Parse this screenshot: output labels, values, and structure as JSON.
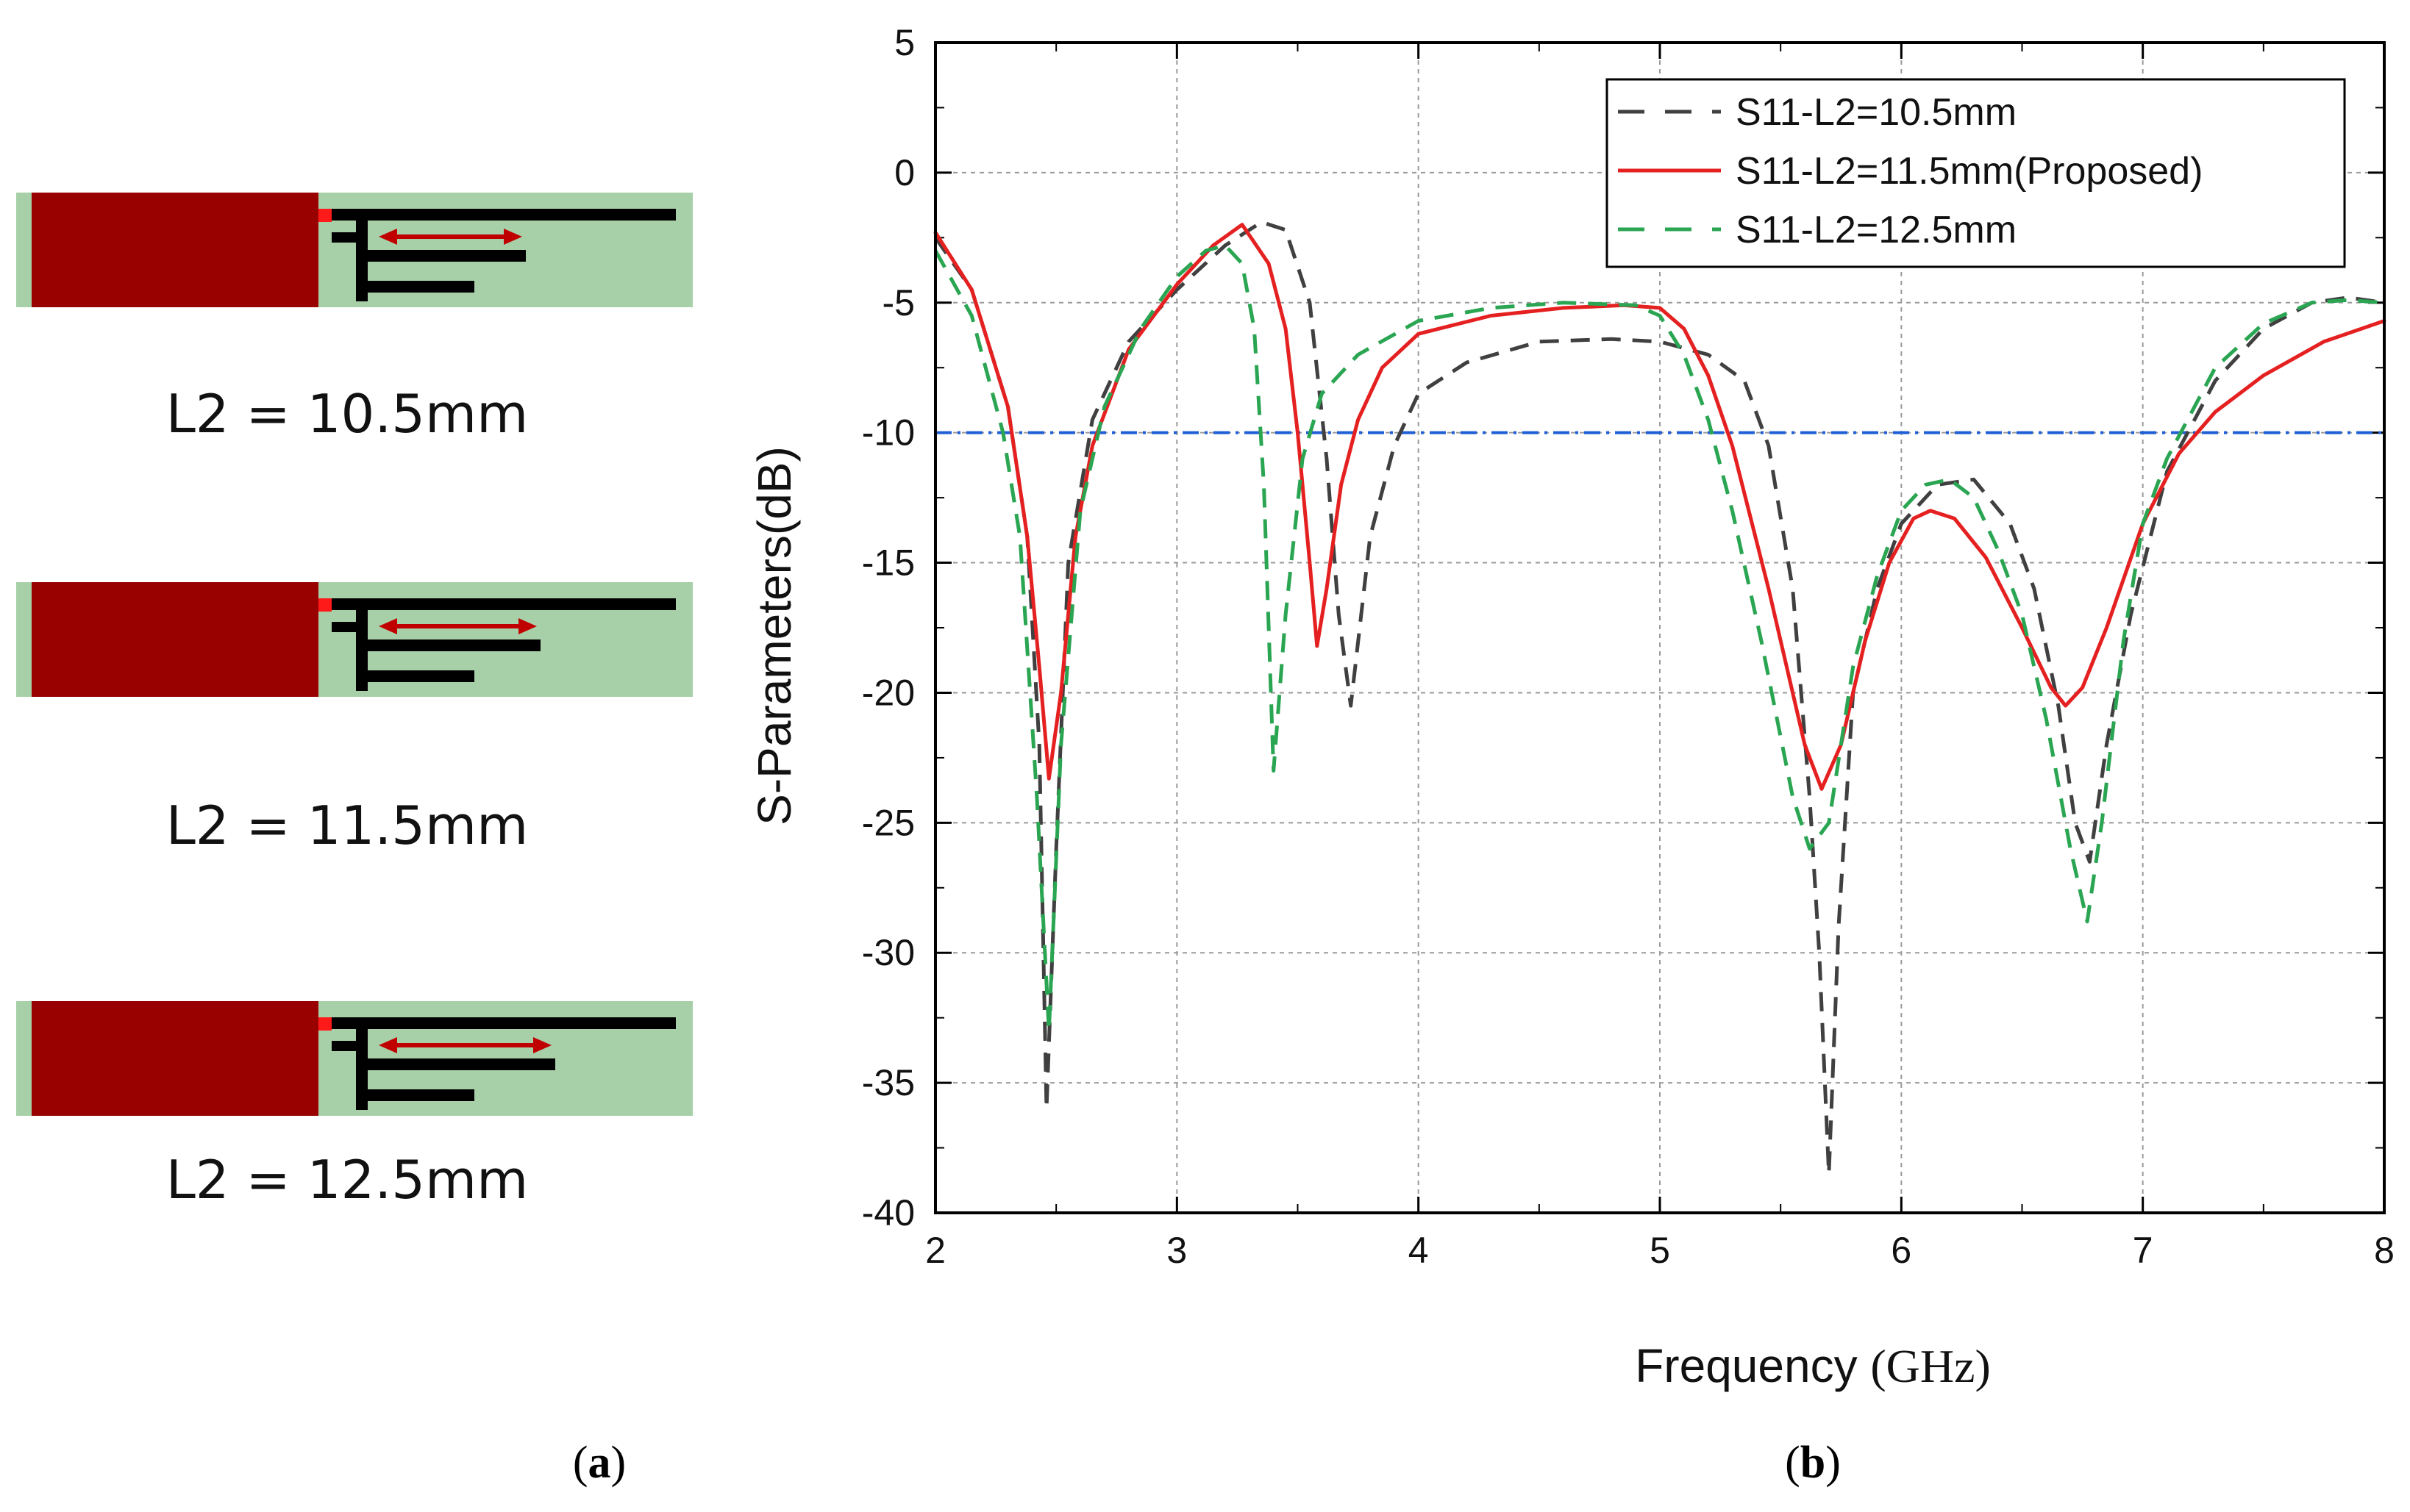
{
  "panel_a": {
    "label": "a",
    "antennas": [
      {
        "caption": "L2 = 10.5mm",
        "l2_mm": 10.5
      },
      {
        "caption": "L2 = 11.5mm",
        "l2_mm": 11.5
      },
      {
        "caption": "L2 = 12.5mm",
        "l2_mm": 12.5
      }
    ],
    "colors": {
      "substrate": "#a8d0a8",
      "ground": "#990000",
      "feed": "#ff1a1a",
      "trace": "#000000",
      "arrow": "#c00000"
    }
  },
  "panel_b": {
    "label": "b"
  },
  "chart_data": {
    "type": "line",
    "xlabel": "Frequency",
    "xlabel_unit": "(GHz)",
    "ylabel": "S-Parameters(dB)",
    "xlim": [
      2,
      8
    ],
    "ylim": [
      -40,
      5
    ],
    "xticks": [
      2,
      3,
      4,
      5,
      6,
      7,
      8
    ],
    "yticks": [
      5,
      0,
      -5,
      -10,
      -15,
      -20,
      -25,
      -30,
      -35,
      -40
    ],
    "grid": true,
    "legend_position": "top-right",
    "reference_line": {
      "y": -10,
      "color": "#1f5fd6",
      "style": "dash-dot"
    },
    "series": [
      {
        "name": "S11-L2=10.5mm",
        "color": "#404040",
        "dash": "dashed",
        "points": [
          [
            2.0,
            -2.5
          ],
          [
            2.15,
            -4.5
          ],
          [
            2.3,
            -9.0
          ],
          [
            2.38,
            -14.0
          ],
          [
            2.43,
            -22.0
          ],
          [
            2.46,
            -36.0
          ],
          [
            2.5,
            -26.0
          ],
          [
            2.55,
            -15.0
          ],
          [
            2.65,
            -9.5
          ],
          [
            2.8,
            -6.5
          ],
          [
            3.0,
            -4.5
          ],
          [
            3.2,
            -2.8
          ],
          [
            3.35,
            -1.9
          ],
          [
            3.45,
            -2.2
          ],
          [
            3.55,
            -5.0
          ],
          [
            3.62,
            -11.0
          ],
          [
            3.67,
            -17.0
          ],
          [
            3.72,
            -20.5
          ],
          [
            3.8,
            -14.0
          ],
          [
            3.9,
            -10.5
          ],
          [
            4.0,
            -8.5
          ],
          [
            4.2,
            -7.3
          ],
          [
            4.5,
            -6.5
          ],
          [
            4.8,
            -6.4
          ],
          [
            5.0,
            -6.5
          ],
          [
            5.2,
            -7.0
          ],
          [
            5.35,
            -8.0
          ],
          [
            5.45,
            -10.5
          ],
          [
            5.55,
            -16.0
          ],
          [
            5.62,
            -24.0
          ],
          [
            5.66,
            -30.0
          ],
          [
            5.7,
            -38.5
          ],
          [
            5.74,
            -29.0
          ],
          [
            5.8,
            -20.0
          ],
          [
            5.9,
            -16.0
          ],
          [
            6.0,
            -13.5
          ],
          [
            6.15,
            -12.0
          ],
          [
            6.3,
            -11.8
          ],
          [
            6.45,
            -13.5
          ],
          [
            6.55,
            -16.0
          ],
          [
            6.65,
            -20.5
          ],
          [
            6.72,
            -25.0
          ],
          [
            6.78,
            -26.5
          ],
          [
            6.85,
            -22.0
          ],
          [
            6.95,
            -17.0
          ],
          [
            7.1,
            -11.5
          ],
          [
            7.3,
            -8.0
          ],
          [
            7.5,
            -6.0
          ],
          [
            7.7,
            -5.0
          ],
          [
            7.85,
            -4.8
          ],
          [
            8.0,
            -5.0
          ]
        ]
      },
      {
        "name": "S11-L2=11.5mm(Proposed)",
        "color": "#e52020",
        "dash": "solid",
        "points": [
          [
            2.0,
            -2.3
          ],
          [
            2.15,
            -4.5
          ],
          [
            2.3,
            -9.0
          ],
          [
            2.38,
            -14.0
          ],
          [
            2.43,
            -19.0
          ],
          [
            2.47,
            -23.3
          ],
          [
            2.52,
            -20.0
          ],
          [
            2.58,
            -14.0
          ],
          [
            2.65,
            -10.5
          ],
          [
            2.8,
            -6.8
          ],
          [
            3.0,
            -4.3
          ],
          [
            3.15,
            -2.8
          ],
          [
            3.27,
            -2.0
          ],
          [
            3.38,
            -3.5
          ],
          [
            3.45,
            -6.0
          ],
          [
            3.5,
            -10.0
          ],
          [
            3.55,
            -15.0
          ],
          [
            3.58,
            -18.2
          ],
          [
            3.62,
            -16.0
          ],
          [
            3.68,
            -12.0
          ],
          [
            3.75,
            -9.5
          ],
          [
            3.85,
            -7.5
          ],
          [
            4.0,
            -6.2
          ],
          [
            4.3,
            -5.5
          ],
          [
            4.6,
            -5.2
          ],
          [
            4.85,
            -5.1
          ],
          [
            5.0,
            -5.2
          ],
          [
            5.1,
            -6.0
          ],
          [
            5.2,
            -7.8
          ],
          [
            5.3,
            -10.5
          ],
          [
            5.45,
            -16.0
          ],
          [
            5.6,
            -22.0
          ],
          [
            5.67,
            -23.7
          ],
          [
            5.75,
            -22.0
          ],
          [
            5.85,
            -18.0
          ],
          [
            5.95,
            -15.0
          ],
          [
            6.05,
            -13.3
          ],
          [
            6.12,
            -13.0
          ],
          [
            6.22,
            -13.3
          ],
          [
            6.35,
            -14.8
          ],
          [
            6.5,
            -17.5
          ],
          [
            6.62,
            -19.8
          ],
          [
            6.68,
            -20.5
          ],
          [
            6.75,
            -19.8
          ],
          [
            6.85,
            -17.5
          ],
          [
            7.0,
            -13.5
          ],
          [
            7.15,
            -10.8
          ],
          [
            7.3,
            -9.2
          ],
          [
            7.5,
            -7.8
          ],
          [
            7.75,
            -6.5
          ],
          [
            8.0,
            -5.7
          ]
        ]
      },
      {
        "name": "S11-L2=12.5mm",
        "color": "#2aa552",
        "dash": "dashed",
        "points": [
          [
            2.0,
            -3.0
          ],
          [
            2.15,
            -5.5
          ],
          [
            2.28,
            -10.0
          ],
          [
            2.35,
            -14.0
          ],
          [
            2.42,
            -24.0
          ],
          [
            2.47,
            -33.0
          ],
          [
            2.52,
            -22.0
          ],
          [
            2.6,
            -13.0
          ],
          [
            2.7,
            -9.0
          ],
          [
            2.85,
            -6.0
          ],
          [
            3.0,
            -4.0
          ],
          [
            3.12,
            -3.0
          ],
          [
            3.2,
            -2.8
          ],
          [
            3.27,
            -3.5
          ],
          [
            3.32,
            -6.0
          ],
          [
            3.36,
            -12.0
          ],
          [
            3.4,
            -23.0
          ],
          [
            3.45,
            -17.0
          ],
          [
            3.52,
            -11.0
          ],
          [
            3.6,
            -8.5
          ],
          [
            3.75,
            -7.0
          ],
          [
            4.0,
            -5.7
          ],
          [
            4.3,
            -5.2
          ],
          [
            4.6,
            -5.0
          ],
          [
            4.9,
            -5.1
          ],
          [
            5.0,
            -5.5
          ],
          [
            5.1,
            -7.0
          ],
          [
            5.2,
            -9.5
          ],
          [
            5.3,
            -13.0
          ],
          [
            5.42,
            -18.0
          ],
          [
            5.55,
            -24.0
          ],
          [
            5.62,
            -26.0
          ],
          [
            5.7,
            -25.0
          ],
          [
            5.8,
            -19.0
          ],
          [
            5.9,
            -15.5
          ],
          [
            6.0,
            -13.0
          ],
          [
            6.1,
            -12.0
          ],
          [
            6.2,
            -11.8
          ],
          [
            6.3,
            -12.5
          ],
          [
            6.4,
            -14.5
          ],
          [
            6.5,
            -17.0
          ],
          [
            6.6,
            -21.0
          ],
          [
            6.7,
            -26.0
          ],
          [
            6.77,
            -28.8
          ],
          [
            6.83,
            -25.0
          ],
          [
            6.92,
            -18.0
          ],
          [
            7.0,
            -13.5
          ],
          [
            7.1,
            -11.0
          ],
          [
            7.3,
            -7.5
          ],
          [
            7.5,
            -5.8
          ],
          [
            7.7,
            -5.0
          ],
          [
            7.85,
            -4.9
          ],
          [
            8.0,
            -5.0
          ]
        ]
      }
    ]
  }
}
